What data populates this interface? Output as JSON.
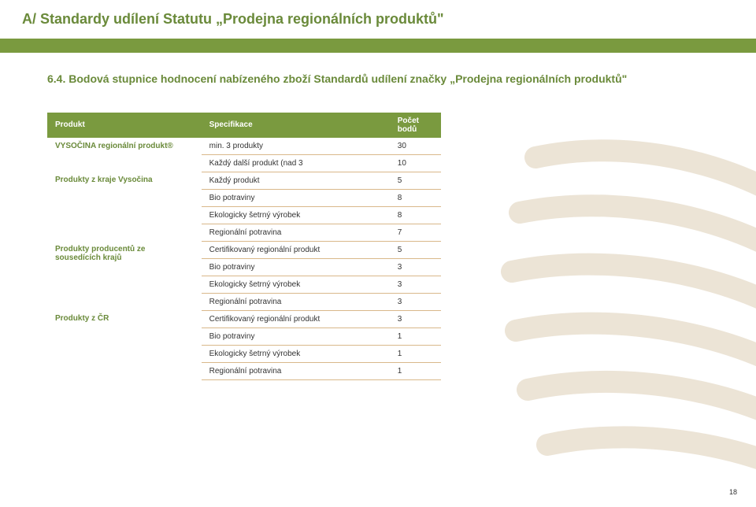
{
  "page_title": "A/ Standardy udílení Statutu „Prodejna regionálních produktů\"",
  "section_heading": "6.4. Bodová stupnice hodnocení nabízeného zboží Standardů udílení značky „Prodejna regionálních produktů\"",
  "page_number": "18",
  "colors": {
    "brand_green": "#6a8a3a",
    "bar_green": "#7a9a3f",
    "row_border": "#d9b88a",
    "stripe": "#ece4d6",
    "text": "#333333",
    "white": "#ffffff"
  },
  "table": {
    "columns": [
      "Produkt",
      "Specifikace",
      "Počet bodů"
    ],
    "groups": [
      {
        "product": "VYSOČINA regionální produkt®",
        "rows": [
          {
            "spec": "min. 3 produkty",
            "points": "30"
          },
          {
            "spec": "Každý další produkt (nad 3",
            "points": "10"
          }
        ]
      },
      {
        "product": "Produkty z kraje Vysočina",
        "rows": [
          {
            "spec": "Každý produkt",
            "points": "5"
          },
          {
            "spec": "Bio potraviny",
            "points": "8"
          },
          {
            "spec": "Ekologicky šetrný výrobek",
            "points": "8"
          },
          {
            "spec": "Regionální potravina",
            "points": "7"
          }
        ]
      },
      {
        "product": "Produkty producentů ze sousedících krajů",
        "rows": [
          {
            "spec": "Certifikovaný regionální produkt",
            "points": "5"
          },
          {
            "spec": "Bio potraviny",
            "points": "3"
          },
          {
            "spec": "Ekologicky šetrný výrobek",
            "points": "3"
          },
          {
            "spec": "Regionální potravina",
            "points": "3"
          }
        ]
      },
      {
        "product": "Produkty z ČR",
        "rows": [
          {
            "spec": "Certifikovaný regionální produkt",
            "points": "3"
          },
          {
            "spec": "Bio potraviny",
            "points": "1"
          },
          {
            "spec": "Ekologicky šetrný výrobek",
            "points": "1"
          },
          {
            "spec": "Regionální potravina",
            "points": "1"
          }
        ]
      }
    ]
  }
}
